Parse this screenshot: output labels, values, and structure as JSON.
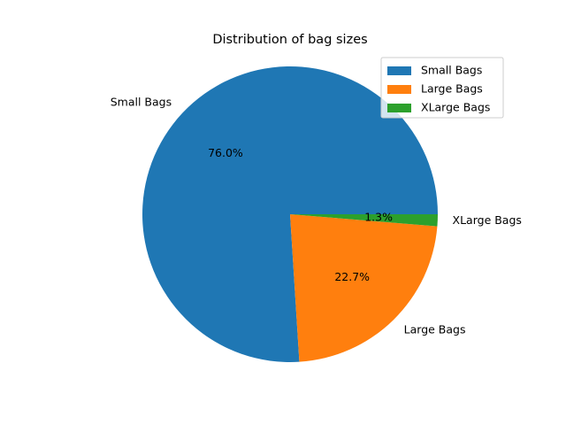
{
  "chart_data": {
    "type": "pie",
    "title": "Distribution of bag sizes",
    "categories": [
      "Small Bags",
      "Large Bags",
      "XLarge Bags"
    ],
    "values": [
      76.0,
      22.7,
      1.3
    ],
    "percent_labels": [
      "76.0%",
      "22.7%",
      "1.3%"
    ],
    "colors": [
      "#1f77b4",
      "#ff7f0e",
      "#2ca02c"
    ],
    "start_angle": "0 degrees (3 o'clock), counterclockwise",
    "legend": {
      "placement": "upper right",
      "entries": [
        "Small Bags",
        "Large Bags",
        "XLarge Bags"
      ]
    }
  }
}
